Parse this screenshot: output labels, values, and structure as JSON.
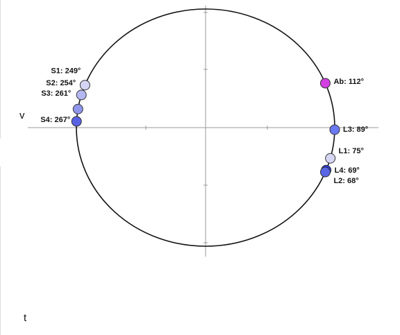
{
  "chart_data": {
    "type": "circular",
    "annotations": [
      "v",
      "t"
    ],
    "series": [
      {
        "name": "S1",
        "color": "#d4d4f4",
        "values": [
          249
        ],
        "value_labels": [
          "S1: 249°"
        ]
      },
      {
        "name": "S2",
        "color": "#b4b8f2",
        "values": [
          254
        ],
        "value_labels": [
          "S2: 254°"
        ]
      },
      {
        "name": "S3",
        "color": "#8f96ec",
        "values": [
          261
        ],
        "value_labels": [
          "S3: 261°"
        ]
      },
      {
        "name": "S4",
        "color": "#5a62e4",
        "values": [
          267
        ],
        "value_labels": [
          "S4: 267°"
        ]
      },
      {
        "name": "Ab",
        "color": "#d23fe2",
        "values": [
          112
        ],
        "value_labels": [
          "Ab: 112°"
        ]
      },
      {
        "name": "L3",
        "color": "#6a78f2",
        "values": [
          89
        ],
        "value_labels": [
          "L3: 89°"
        ]
      },
      {
        "name": "L1",
        "color": "#d6d6f4",
        "values": [
          75
        ],
        "value_labels": [
          "L1: 75°"
        ]
      },
      {
        "name": "L4",
        "color": "#2838e0",
        "values": [
          69
        ],
        "value_labels": [
          "L4: 69°"
        ]
      },
      {
        "name": "L2",
        "color": "#5866e6",
        "values": [
          68
        ],
        "value_labels": [
          "L2: 68°"
        ]
      }
    ]
  }
}
